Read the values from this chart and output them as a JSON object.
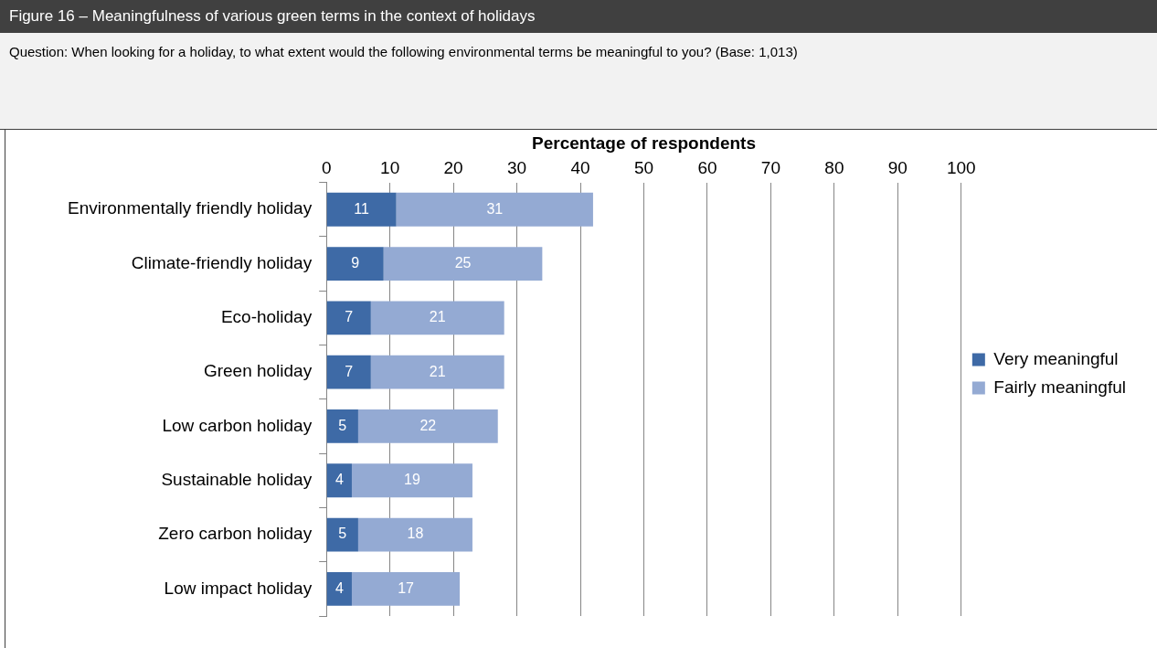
{
  "chart_data": {
    "type": "bar",
    "title": "Figure 16 – Meaningfulness of various green terms in the context of holidays",
    "subtitle": "Question: When looking for a holiday, to what extent would the following environmental terms be meaningful to you? (Base: 1,013)",
    "xlabel": "Percentage of respondents",
    "orientation": "horizontal",
    "stacked": true,
    "categories": [
      "Environmentally friendly holiday",
      "Climate-friendly holiday",
      "Eco-holiday",
      "Green holiday",
      "Low carbon holiday",
      "Sustainable holiday",
      "Zero carbon holiday",
      "Low impact holiday"
    ],
    "series": [
      {
        "name": "Very meaningful",
        "color": "#3e6aa6",
        "values": [
          11,
          9,
          7,
          7,
          5,
          4,
          5,
          4
        ]
      },
      {
        "name": "Fairly meaningful",
        "color": "#94aad3",
        "values": [
          31,
          25,
          21,
          21,
          22,
          19,
          18,
          17
        ]
      }
    ],
    "xlim": [
      0,
      100
    ],
    "xticks": [
      0,
      10,
      20,
      30,
      40,
      50,
      60,
      70,
      80,
      90,
      100
    ],
    "grid": "x",
    "legend": "right",
    "data_labels": true
  }
}
